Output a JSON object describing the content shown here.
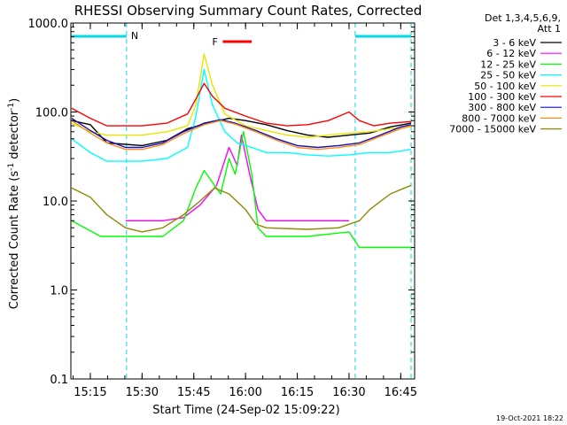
{
  "chart_data": {
    "type": "line",
    "title": "RHESSI Observing Summary Count Rates, Corrected",
    "xlabel": "Start Time (24-Sep-02 15:09:22)",
    "ylabel_prefix": "Corrected Count Rate (s",
    "ylabel_exp1": "-1",
    "ylabel_mid": " detector",
    "ylabel_exp2": "-1",
    "ylabel_suffix": ")",
    "y_scale": "log",
    "ylim": [
      0.1,
      1000
    ],
    "xlim": [
      15.156,
      16.817
    ],
    "y_ticks": [
      {
        "label": "1000.0",
        "value": 1000
      },
      {
        "label": "100.0",
        "value": 100
      },
      {
        "label": "10.0",
        "value": 10
      },
      {
        "label": "1.0",
        "value": 1
      },
      {
        "label": "0.1",
        "value": 0.1
      }
    ],
    "x_ticks": [
      {
        "label": "15:15",
        "value": 15.25
      },
      {
        "label": "15:30",
        "value": 15.5
      },
      {
        "label": "15:45",
        "value": 15.75
      },
      {
        "label": "16:00",
        "value": 16.0
      },
      {
        "label": "16:15",
        "value": 16.25
      },
      {
        "label": "16:30",
        "value": 16.5
      },
      {
        "label": "16:45",
        "value": 16.75
      }
    ],
    "legend_header": [
      "Det 1,3,4,5,6,9,",
      "Att 1"
    ],
    "legend_placement": "right",
    "night_intervals": [
      [
        15.156,
        15.425
      ],
      [
        16.53,
        16.8
      ]
    ],
    "night_label": "N",
    "flare_interval": [
      15.89,
      16.03
    ],
    "flare_label": "F",
    "series": [
      {
        "name": "3 - 6 keV",
        "color": "#000000",
        "points": [
          [
            15.16,
            80
          ],
          [
            15.25,
            72
          ],
          [
            15.33,
            45
          ],
          [
            15.5,
            42
          ],
          [
            15.62,
            48
          ],
          [
            15.72,
            65
          ],
          [
            15.82,
            75
          ],
          [
            15.92,
            85
          ],
          [
            16.0,
            80
          ],
          [
            16.1,
            72
          ],
          [
            16.2,
            62
          ],
          [
            16.3,
            55
          ],
          [
            16.4,
            52
          ],
          [
            16.5,
            55
          ],
          [
            16.6,
            58
          ],
          [
            16.7,
            68
          ],
          [
            16.8,
            75
          ]
        ]
      },
      {
        "name": "6 - 12 keV",
        "color": "#ff00ff",
        "points": [
          [
            15.42,
            6
          ],
          [
            15.6,
            6
          ],
          [
            15.7,
            6.5
          ],
          [
            15.78,
            9
          ],
          [
            15.86,
            15
          ],
          [
            15.92,
            40
          ],
          [
            15.96,
            25
          ],
          [
            15.98,
            55
          ],
          [
            16.02,
            20
          ],
          [
            16.06,
            8
          ],
          [
            16.1,
            6
          ],
          [
            16.3,
            6
          ],
          [
            16.5,
            6
          ]
        ]
      },
      {
        "name": "12 - 25 keV",
        "color": "#00ff00",
        "points": [
          [
            15.16,
            6
          ],
          [
            15.3,
            4
          ],
          [
            15.45,
            4
          ],
          [
            15.6,
            4
          ],
          [
            15.7,
            6
          ],
          [
            15.76,
            14
          ],
          [
            15.8,
            22
          ],
          [
            15.85,
            15
          ],
          [
            15.88,
            12
          ],
          [
            15.92,
            30
          ],
          [
            15.95,
            20
          ],
          [
            15.99,
            60
          ],
          [
            16.03,
            20
          ],
          [
            16.06,
            5
          ],
          [
            16.1,
            4
          ],
          [
            16.3,
            4
          ],
          [
            16.5,
            4.5
          ],
          [
            16.55,
            3
          ],
          [
            16.8,
            3
          ]
        ]
      },
      {
        "name": "25 - 50 keV",
        "color": "#00ffff",
        "points": [
          [
            15.16,
            50
          ],
          [
            15.25,
            35
          ],
          [
            15.33,
            28
          ],
          [
            15.5,
            28
          ],
          [
            15.62,
            30
          ],
          [
            15.72,
            40
          ],
          [
            15.76,
            90
          ],
          [
            15.8,
            300
          ],
          [
            15.84,
            120
          ],
          [
            15.9,
            60
          ],
          [
            15.96,
            45
          ],
          [
            16.03,
            40
          ],
          [
            16.1,
            35
          ],
          [
            16.2,
            35
          ],
          [
            16.3,
            33
          ],
          [
            16.4,
            32
          ],
          [
            16.5,
            33
          ],
          [
            16.6,
            35
          ],
          [
            16.7,
            35
          ],
          [
            16.8,
            38
          ]
        ]
      },
      {
        "name": "50 - 100 keV",
        "color": "#e6e600",
        "points": [
          [
            15.16,
            75
          ],
          [
            15.25,
            60
          ],
          [
            15.33,
            55
          ],
          [
            15.5,
            55
          ],
          [
            15.62,
            60
          ],
          [
            15.72,
            70
          ],
          [
            15.76,
            120
          ],
          [
            15.8,
            450
          ],
          [
            15.84,
            200
          ],
          [
            15.9,
            95
          ],
          [
            16.0,
            70
          ],
          [
            16.1,
            62
          ],
          [
            16.2,
            55
          ],
          [
            16.3,
            52
          ],
          [
            16.4,
            55
          ],
          [
            16.5,
            58
          ],
          [
            16.6,
            60
          ],
          [
            16.7,
            65
          ],
          [
            16.8,
            68
          ]
        ]
      },
      {
        "name": "100 - 300 keV",
        "color": "#ff0000",
        "points": [
          [
            15.16,
            110
          ],
          [
            15.25,
            85
          ],
          [
            15.33,
            70
          ],
          [
            15.5,
            70
          ],
          [
            15.62,
            75
          ],
          [
            15.72,
            95
          ],
          [
            15.76,
            140
          ],
          [
            15.8,
            210
          ],
          [
            15.84,
            150
          ],
          [
            15.9,
            110
          ],
          [
            16.0,
            90
          ],
          [
            16.1,
            75
          ],
          [
            16.2,
            70
          ],
          [
            16.3,
            72
          ],
          [
            16.4,
            80
          ],
          [
            16.5,
            100
          ],
          [
            16.55,
            80
          ],
          [
            16.62,
            70
          ],
          [
            16.7,
            75
          ],
          [
            16.8,
            78
          ]
        ]
      },
      {
        "name": "300 - 800 keV",
        "color": "#1010c0",
        "points": [
          [
            15.16,
            85
          ],
          [
            15.25,
            62
          ],
          [
            15.33,
            48
          ],
          [
            15.42,
            40
          ],
          [
            15.5,
            40
          ],
          [
            15.6,
            45
          ],
          [
            15.7,
            60
          ],
          [
            15.8,
            75
          ],
          [
            15.88,
            82
          ],
          [
            15.95,
            75
          ],
          [
            16.05,
            62
          ],
          [
            16.15,
            50
          ],
          [
            16.25,
            42
          ],
          [
            16.35,
            40
          ],
          [
            16.45,
            42
          ],
          [
            16.55,
            45
          ],
          [
            16.65,
            55
          ],
          [
            16.75,
            68
          ],
          [
            16.8,
            72
          ]
        ]
      },
      {
        "name": "800 - 7000 keV",
        "color": "#ff8c1a",
        "points": [
          [
            15.16,
            80
          ],
          [
            15.25,
            58
          ],
          [
            15.33,
            45
          ],
          [
            15.42,
            38
          ],
          [
            15.5,
            38
          ],
          [
            15.6,
            43
          ],
          [
            15.7,
            57
          ],
          [
            15.8,
            72
          ],
          [
            15.88,
            80
          ],
          [
            15.95,
            73
          ],
          [
            16.05,
            60
          ],
          [
            16.15,
            48
          ],
          [
            16.25,
            40
          ],
          [
            16.35,
            38
          ],
          [
            16.45,
            40
          ],
          [
            16.55,
            43
          ],
          [
            16.65,
            53
          ],
          [
            16.75,
            65
          ],
          [
            16.8,
            70
          ]
        ]
      },
      {
        "name": "7000 - 15000 keV",
        "color": "#8b8b00",
        "points": [
          [
            15.16,
            14
          ],
          [
            15.25,
            11
          ],
          [
            15.33,
            7
          ],
          [
            15.42,
            5
          ],
          [
            15.5,
            4.5
          ],
          [
            15.6,
            5
          ],
          [
            15.7,
            7
          ],
          [
            15.78,
            10
          ],
          [
            15.85,
            14
          ],
          [
            15.92,
            12
          ],
          [
            16.0,
            8
          ],
          [
            16.05,
            5.5
          ],
          [
            16.1,
            5
          ],
          [
            16.3,
            4.8
          ],
          [
            16.45,
            5
          ],
          [
            16.55,
            6
          ],
          [
            16.6,
            8
          ],
          [
            16.7,
            12
          ],
          [
            16.8,
            15
          ]
        ]
      }
    ]
  },
  "footer_timestamp": "19-Oct-2021 18:22"
}
